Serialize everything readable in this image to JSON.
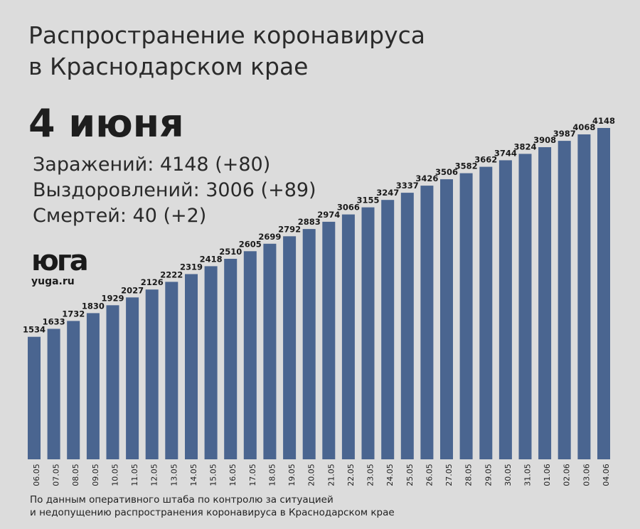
{
  "title_line1": "Распространение коронавируса",
  "title_line2": "в Краснодарском крае",
  "date_heading": "4 июня",
  "stats": {
    "infected": "Заражений: 4148 (+80)",
    "recovered": "Выздоровлений: 3006 (+89)",
    "deaths": "Смертей: 40 (+2)"
  },
  "logo": {
    "mark_text": "юга",
    "url": "yuga.ru"
  },
  "footer_line1": "По данным оперативного штаба по контролю за ситуацией",
  "footer_line2": "и недопущению распространения коронавируса в Краснодарском крае",
  "colors": {
    "background": "#dcdcdc",
    "bar": "#4a6590",
    "text": "#222222"
  },
  "chart_data": {
    "type": "bar",
    "categories": [
      "06.05",
      "07.05",
      "08.05",
      "09.05",
      "10.05",
      "11.05",
      "12.05",
      "13.05",
      "14.05",
      "15.05",
      "16.05",
      "17.05",
      "18.05",
      "19.05",
      "20.05",
      "21.05",
      "22.05",
      "23.05",
      "24.05",
      "25.05",
      "26.05",
      "27.05",
      "28.05",
      "29.05",
      "30.05",
      "31.05",
      "01.06",
      "02.06",
      "03.06",
      "04.06"
    ],
    "values": [
      1534,
      1633,
      1732,
      1830,
      1929,
      2027,
      2126,
      2222,
      2319,
      2418,
      2510,
      2605,
      2699,
      2792,
      2883,
      2974,
      3066,
      3155,
      3247,
      3337,
      3426,
      3506,
      3582,
      3662,
      3744,
      3824,
      3908,
      3987,
      4068,
      4148
    ],
    "title": "",
    "xlabel": "",
    "ylabel": "",
    "ylim": [
      0,
      4148
    ],
    "grid": false,
    "legend": "none",
    "data_labels": true
  }
}
